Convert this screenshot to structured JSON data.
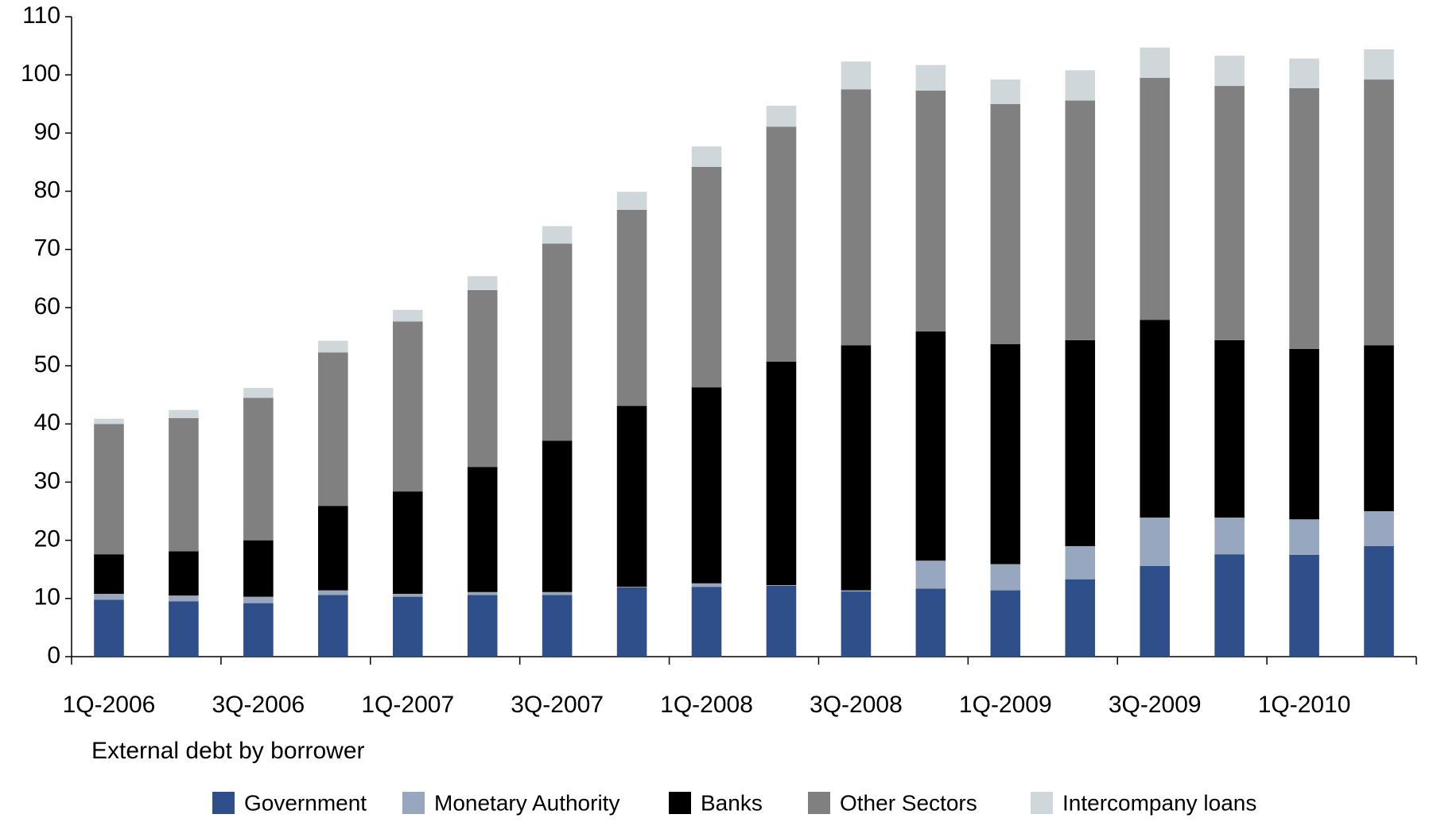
{
  "chart_data": {
    "type": "stacked_bar",
    "subtitle": "External debt by borrower",
    "categories": [
      "1Q-2006",
      null,
      "3Q-2006",
      null,
      "1Q-2007",
      null,
      "3Q-2007",
      null,
      "1Q-2008",
      null,
      "3Q-2008",
      null,
      "1Q-2009",
      null,
      "3Q-2009",
      null,
      "1Q-2010",
      null
    ],
    "series": [
      {
        "name": "Government",
        "color": "#2e4f8a",
        "values": [
          9.8,
          9.5,
          9.2,
          10.6,
          10.3,
          10.6,
          10.6,
          11.9,
          12,
          12.2,
          11.2,
          11.7,
          11.4,
          13.3,
          15.6,
          17.6,
          17.5,
          19
        ]
      },
      {
        "name": "Monetary Authority",
        "color": "#97a7c0",
        "values": [
          1.0,
          1.0,
          1.1,
          0.8,
          0.5,
          0.5,
          0.5,
          0.1,
          0.6,
          0.1,
          0.2,
          4.8,
          4.5,
          5.7,
          8.3,
          6.3,
          6.1,
          6
        ]
      },
      {
        "name": "Banks",
        "color": "#000000",
        "values": [
          6.8,
          7.6,
          9.7,
          14.5,
          17.6,
          21.5,
          26,
          31.1,
          33.7,
          38.4,
          42.1,
          39.4,
          37.8,
          35.4,
          34,
          30.5,
          29.3,
          28.5
        ]
      },
      {
        "name": "Other Sectors",
        "color": "#808080",
        "values": [
          22.4,
          22.9,
          24.5,
          26.4,
          29.2,
          30.4,
          33.9,
          33.7,
          37.9,
          40.4,
          44,
          41.4,
          41.3,
          41.2,
          41.6,
          43.7,
          44.8,
          45.7
        ]
      },
      {
        "name": "Intercompany loans",
        "color": "#d0d7db",
        "values": [
          0.9,
          1.4,
          1.7,
          2.0,
          2.0,
          2.4,
          3.0,
          3.1,
          3.5,
          3.6,
          4.8,
          4.4,
          4.2,
          5.2,
          5.2,
          5.2,
          5.1,
          5.2
        ]
      }
    ],
    "ylim": [
      0,
      110
    ],
    "yticks": [
      0,
      10,
      20,
      30,
      40,
      50,
      60,
      70,
      80,
      90,
      100,
      110
    ],
    "legend": "bottom"
  }
}
